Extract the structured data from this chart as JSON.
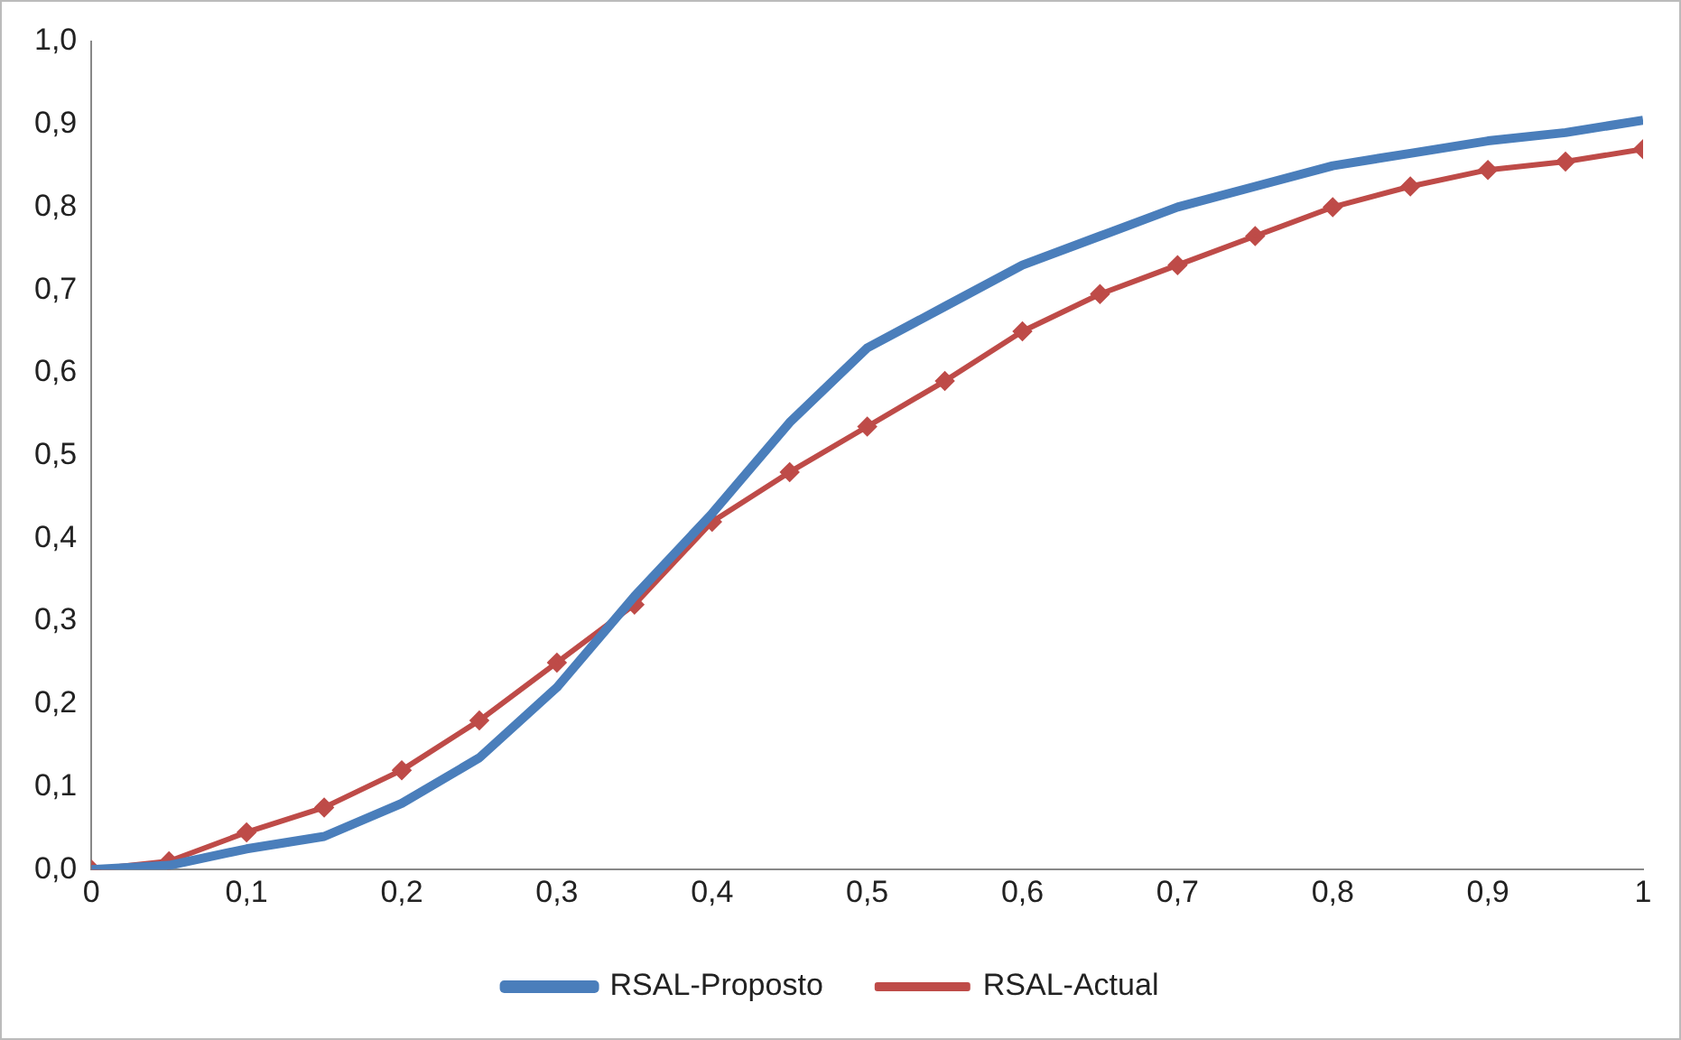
{
  "chart_data": {
    "type": "line",
    "x": [
      0,
      0.05,
      0.1,
      0.15,
      0.2,
      0.25,
      0.3,
      0.35,
      0.4,
      0.45,
      0.5,
      0.55,
      0.6,
      0.65,
      0.7,
      0.75,
      0.8,
      0.85,
      0.9,
      0.95,
      1
    ],
    "series": [
      {
        "name": "RSAL-Proposto",
        "color": "#4a7ebb",
        "marker": "none",
        "values": [
          0.0,
          0.005,
          0.025,
          0.04,
          0.08,
          0.135,
          0.22,
          0.33,
          0.43,
          0.54,
          0.63,
          0.68,
          0.73,
          0.765,
          0.8,
          0.825,
          0.85,
          0.865,
          0.88,
          0.89,
          0.905
        ]
      },
      {
        "name": "RSAL-Actual",
        "color": "#be4b48",
        "marker": "diamond",
        "values": [
          0.0,
          0.01,
          0.045,
          0.075,
          0.12,
          0.18,
          0.25,
          0.32,
          0.42,
          0.48,
          0.535,
          0.59,
          0.65,
          0.695,
          0.73,
          0.765,
          0.8,
          0.825,
          0.845,
          0.855,
          0.87
        ]
      }
    ],
    "xlim": [
      0,
      1
    ],
    "xticks": [
      0,
      {
        "value": 0.1,
        "label": "0,1"
      },
      {
        "value": 0.2,
        "label": "0,2"
      },
      {
        "value": 0.3,
        "label": "0,3"
      },
      {
        "value": 0.4,
        "label": "0,4"
      },
      {
        "value": 0.5,
        "label": "0,5"
      },
      {
        "value": 0.6,
        "label": "0,6"
      },
      {
        "value": 0.7,
        "label": "0,7"
      },
      {
        "value": 0.8,
        "label": "0,8"
      },
      {
        "value": 0.9,
        "label": "0,9"
      },
      1
    ],
    "ylim": [
      0,
      1
    ],
    "yticks": [
      {
        "value": 0,
        "label": "0,0"
      },
      {
        "value": 0.1,
        "label": "0,1"
      },
      {
        "value": 0.2,
        "label": "0,2"
      },
      {
        "value": 0.3,
        "label": "0,3"
      },
      {
        "value": 0.4,
        "label": "0,4"
      },
      {
        "value": 0.5,
        "label": "0,5"
      },
      {
        "value": 0.6,
        "label": "0,6"
      },
      {
        "value": 0.7,
        "label": "0,7"
      },
      {
        "value": 0.8,
        "label": "0,8"
      },
      {
        "value": 0.9,
        "label": "0,9"
      },
      {
        "value": 1,
        "label": "1,0"
      }
    ],
    "grid": false,
    "legend": "bottom"
  }
}
